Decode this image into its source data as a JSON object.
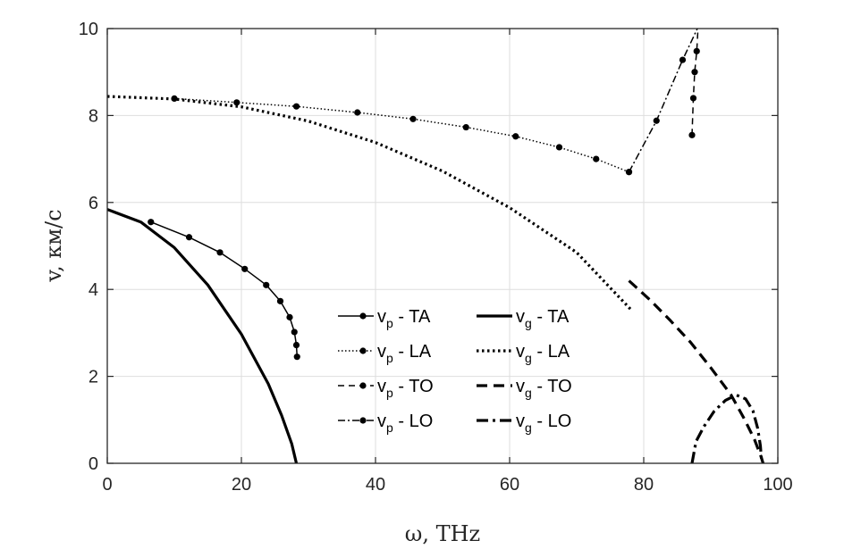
{
  "chart_data": {
    "type": "line",
    "xlabel": "ω, THz",
    "ylabel": "v,  км/с",
    "xlim": [
      0,
      100
    ],
    "ylim": [
      0,
      10
    ],
    "x_ticks": [
      "0",
      "20",
      "40",
      "60",
      "80",
      "100"
    ],
    "y_ticks": [
      "0",
      "2",
      "4",
      "6",
      "8",
      "10"
    ],
    "grid": true,
    "legend_position": "center",
    "legend_columns": 2,
    "series": [
      {
        "name": "v_p - TA",
        "label_main": "v",
        "label_sub": "p",
        "label_rest": " - TA",
        "style": "solid",
        "markers": true,
        "x": [
          6.5,
          12.2,
          16.8,
          20.5,
          23.7,
          25.8,
          27.2,
          27.9,
          28.2,
          28.3
        ],
        "y": [
          5.55,
          5.2,
          4.85,
          4.47,
          4.1,
          3.73,
          3.36,
          3.02,
          2.72,
          2.45
        ]
      },
      {
        "name": "v_p - LA",
        "label_main": "v",
        "label_sub": "p",
        "label_rest": " - LA",
        "style": "dotted",
        "markers": true,
        "x": [
          10,
          19.3,
          28.2,
          37.3,
          45.6,
          53.5,
          60.9,
          67.4,
          72.9,
          77.8
        ],
        "y": [
          8.39,
          8.3,
          8.21,
          8.07,
          7.92,
          7.73,
          7.52,
          7.27,
          7.0,
          6.7
        ]
      },
      {
        "name": "v_p - TO",
        "label_main": "v",
        "label_sub": "p",
        "label_rest": " - TO",
        "style": "dashed",
        "markers": true,
        "x": [
          87.2,
          87.4,
          87.6,
          87.9,
          88.1
        ],
        "y": [
          7.55,
          8.4,
          9.0,
          9.48,
          10.0
        ]
      },
      {
        "name": "v_p - LO",
        "label_main": "v",
        "label_sub": "p",
        "label_rest": " - LO",
        "style": "dashdot",
        "markers": true,
        "x": [
          77.8,
          81.9,
          85.8,
          88.0
        ],
        "y": [
          6.7,
          7.88,
          9.28,
          10.0
        ]
      },
      {
        "name": "v_g - TA",
        "label_main": "v",
        "label_sub": "g",
        "label_rest": " - TA",
        "style": "solid-thick",
        "markers": false,
        "x": [
          0,
          5,
          10,
          15,
          20,
          24,
          26,
          27.5,
          28.2
        ],
        "y": [
          5.84,
          5.55,
          4.96,
          4.1,
          2.97,
          1.83,
          1.1,
          0.45,
          0
        ]
      },
      {
        "name": "v_g - LA",
        "label_main": "v",
        "label_sub": "g",
        "label_rest": " - LA",
        "style": "dotted-thick",
        "markers": false,
        "x": [
          0,
          10,
          20,
          30,
          40,
          50,
          60,
          70,
          78
        ],
        "y": [
          8.44,
          8.38,
          8.2,
          7.87,
          7.38,
          6.72,
          5.88,
          4.85,
          3.55
        ]
      },
      {
        "name": "v_g - TO",
        "label_main": "v",
        "label_sub": "g",
        "label_rest": " - TO",
        "style": "dashed-thick",
        "markers": false,
        "x": [
          77.8,
          81,
          84,
          87,
          90,
          93,
          95,
          96.5,
          97.5,
          97.8
        ],
        "y": [
          4.2,
          3.75,
          3.28,
          2.78,
          2.2,
          1.58,
          1.02,
          0.55,
          0.15,
          0
        ]
      },
      {
        "name": "v_g - LO",
        "label_main": "v",
        "label_sub": "g",
        "label_rest": " - LO",
        "style": "dashdot-thick",
        "markers": false,
        "x": [
          87.2,
          87.8,
          89,
          90.5,
          92.2,
          93.8,
          95.2,
          96.3,
          97.0,
          97.4,
          97.6
        ],
        "y": [
          0,
          0.5,
          0.85,
          1.2,
          1.45,
          1.57,
          1.48,
          1.2,
          0.8,
          0.4,
          0
        ]
      }
    ]
  }
}
